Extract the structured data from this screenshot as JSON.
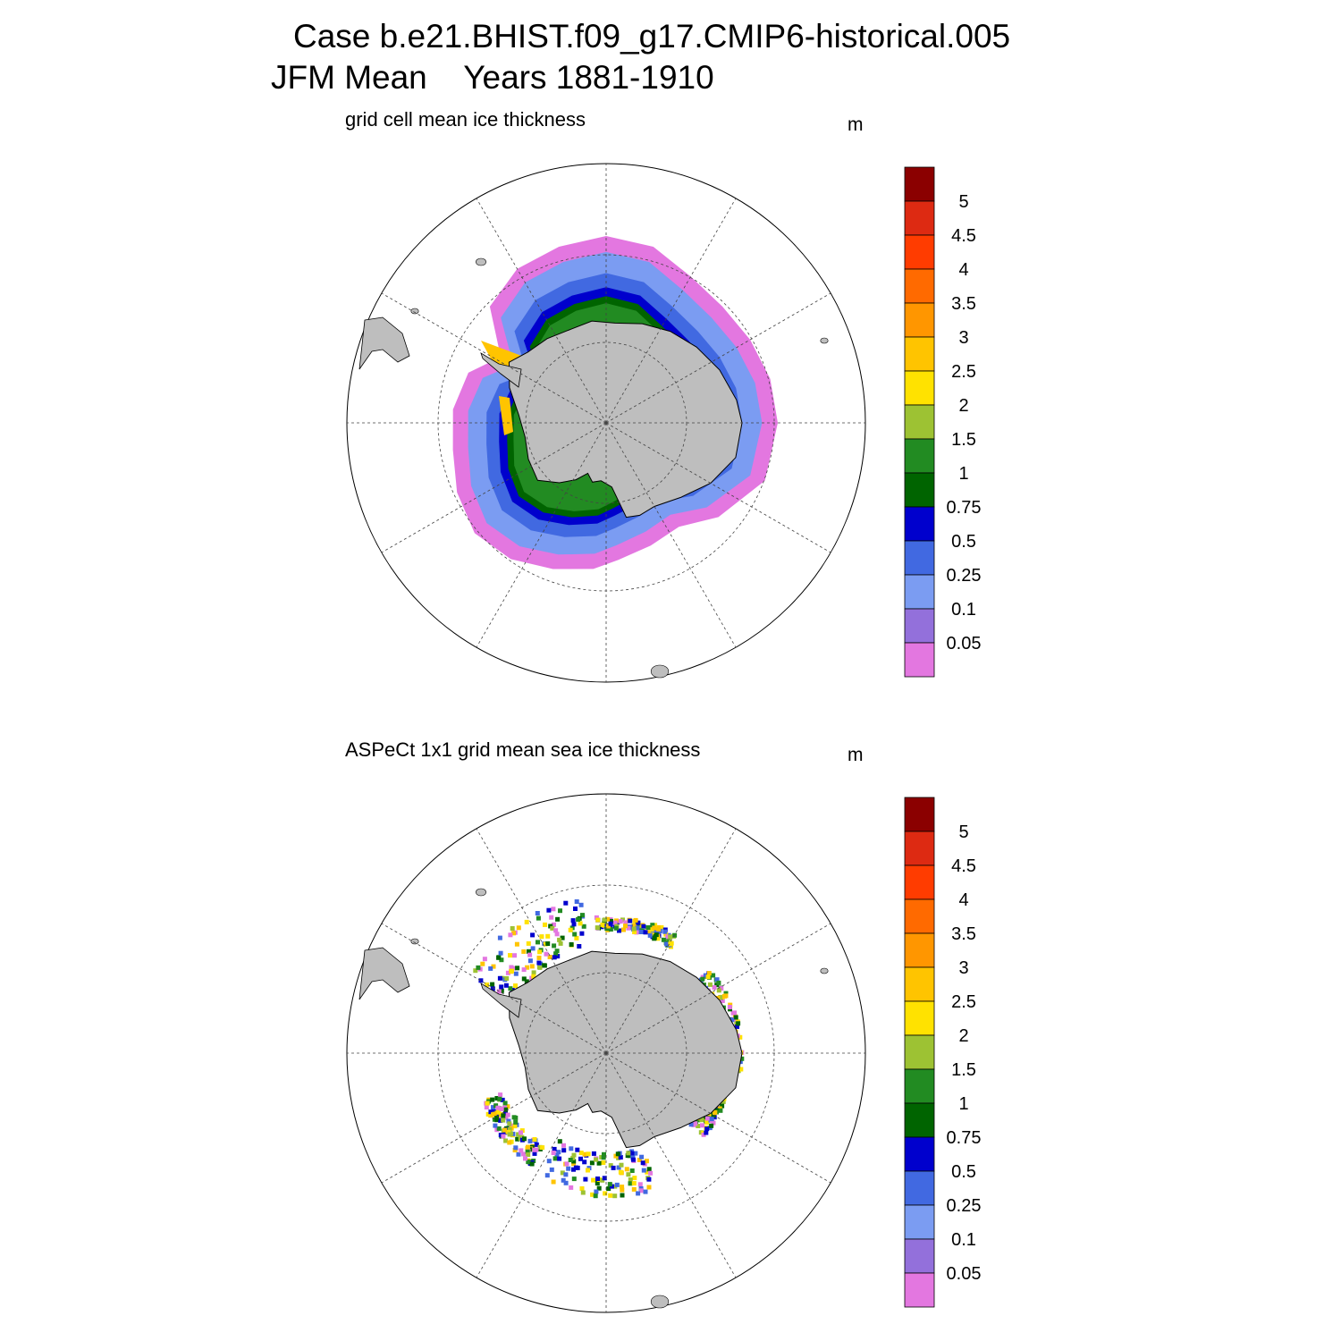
{
  "title": {
    "line1": "Case b.e21.BHIST.f09_g17.CMIP6-historical.005",
    "line2": "JFM Mean    Years 1881-1910"
  },
  "panels": [
    {
      "title": "grid cell mean ice thickness",
      "units": "m"
    },
    {
      "title": "ASPeCt 1x1 grid mean sea ice thickness",
      "units": "m"
    }
  ],
  "colorbar": {
    "labels": [
      "5",
      "4.5",
      "4",
      "3.5",
      "3",
      "2.5",
      "2",
      "1.5",
      "1",
      "0.75",
      "0.5",
      "0.25",
      "0.1",
      "0.05"
    ],
    "colors_top_to_bottom": [
      "#8b0000",
      "#dd2a12",
      "#ff3c00",
      "#ff6a00",
      "#ff9600",
      "#ffc400",
      "#ffe200",
      "#9dc233",
      "#228b22",
      "#006400",
      "#0000cd",
      "#4169e1",
      "#7b9cf2",
      "#9370db",
      "#e377e0"
    ]
  },
  "colors": {
    "land": "#bebebe",
    "coast": "#000000",
    "grid": "#444444"
  }
}
